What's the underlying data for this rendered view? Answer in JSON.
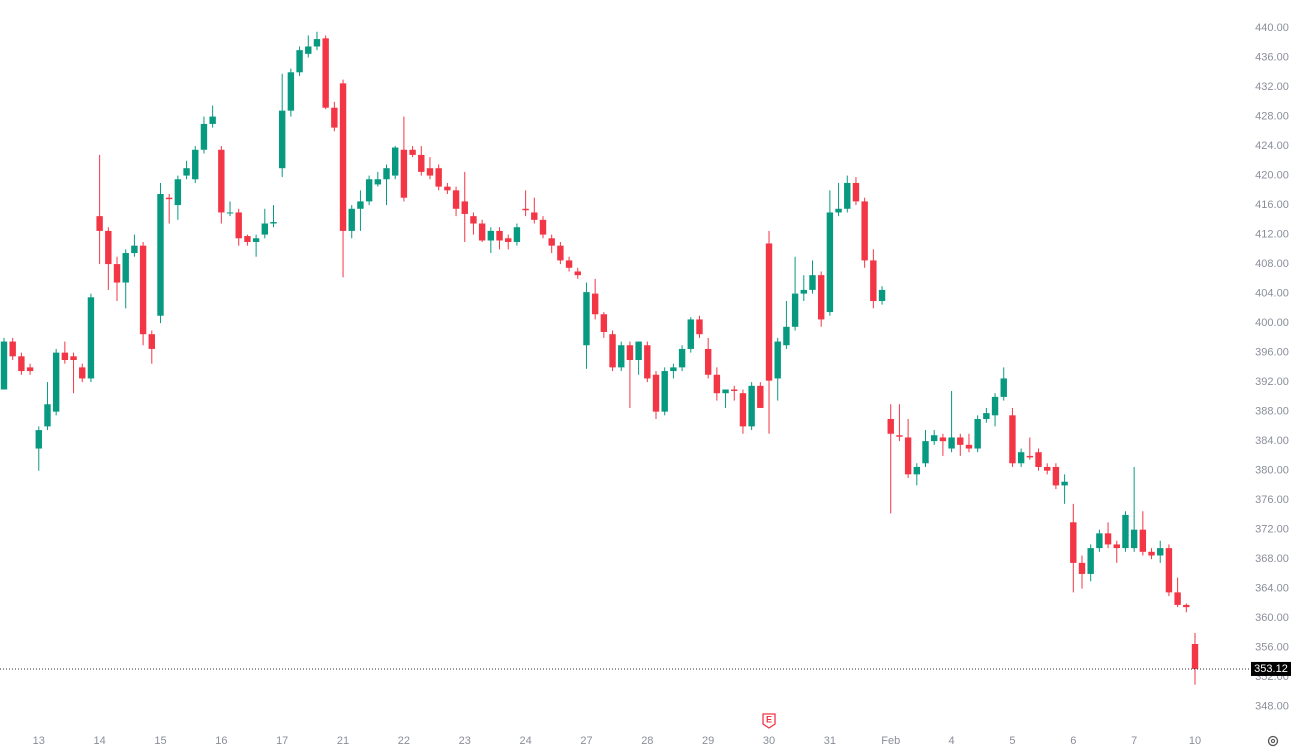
{
  "chart_data": {
    "type": "candlestick",
    "up_color": "#089981",
    "down_color": "#f23645",
    "ylim": [
      346.2,
      443.8
    ],
    "yticks": [
      {
        "value": 348,
        "label": "348.00"
      },
      {
        "value": 352,
        "label": "352.00"
      },
      {
        "value": 356,
        "label": "356.00"
      },
      {
        "value": 360,
        "label": "360.00"
      },
      {
        "value": 364,
        "label": "364.00"
      },
      {
        "value": 368,
        "label": "368.00"
      },
      {
        "value": 372,
        "label": "372.00"
      },
      {
        "value": 376,
        "label": "376.00"
      },
      {
        "value": 380,
        "label": "380.00"
      },
      {
        "value": 384,
        "label": "384.00"
      },
      {
        "value": 388,
        "label": "388.00"
      },
      {
        "value": 392,
        "label": "392.00"
      },
      {
        "value": 396,
        "label": "396.00"
      },
      {
        "value": 400,
        "label": "400.00"
      },
      {
        "value": 404,
        "label": "404.00"
      },
      {
        "value": 408,
        "label": "408.00"
      },
      {
        "value": 412,
        "label": "412.00"
      },
      {
        "value": 416,
        "label": "416.00"
      },
      {
        "value": 420,
        "label": "420.00"
      },
      {
        "value": 424,
        "label": "424.00"
      },
      {
        "value": 428,
        "label": "428.00"
      },
      {
        "value": 432,
        "label": "432.00"
      },
      {
        "value": 436,
        "label": "436.00"
      },
      {
        "value": 440,
        "label": "440.00"
      }
    ],
    "last_price": 353.12,
    "earnings_marker": "E",
    "earnings_index": 88,
    "categories": [
      null,
      null,
      null,
      null,
      "13",
      null,
      null,
      null,
      null,
      null,
      null,
      "14",
      null,
      null,
      null,
      null,
      null,
      null,
      "15",
      null,
      null,
      null,
      null,
      null,
      null,
      "16",
      null,
      null,
      null,
      null,
      null,
      null,
      "17",
      null,
      null,
      null,
      null,
      null,
      null,
      "21",
      null,
      null,
      null,
      null,
      null,
      null,
      "22",
      null,
      null,
      null,
      null,
      null,
      null,
      "23",
      null,
      null,
      null,
      null,
      null,
      null,
      "24",
      null,
      null,
      null,
      null,
      null,
      null,
      "27",
      null,
      null,
      null,
      null,
      null,
      null,
      "28",
      null,
      null,
      null,
      null,
      null,
      null,
      "29",
      null,
      null,
      null,
      null,
      null,
      null,
      "30",
      null,
      null,
      null,
      null,
      null,
      null,
      "31",
      null,
      null,
      null,
      null,
      null,
      null,
      "Feb",
      null,
      null,
      null,
      null,
      null,
      null,
      "4",
      null,
      null,
      null,
      null,
      null,
      null,
      "5",
      null,
      null,
      null,
      null,
      null,
      null,
      "6",
      null,
      null,
      null,
      null,
      null,
      null,
      "7",
      null,
      null,
      null,
      null,
      null,
      null,
      "10"
    ],
    "ohlc": [
      [
        391,
        398,
        391,
        397.5
      ],
      [
        397.5,
        398,
        395,
        395.5
      ],
      [
        395.5,
        396,
        393,
        393.5
      ],
      [
        394,
        394.5,
        393,
        393.5
      ],
      [
        383,
        386,
        380,
        385.5
      ],
      [
        386,
        392,
        385.5,
        389
      ],
      [
        388,
        396.5,
        387.5,
        396
      ],
      [
        396,
        397.5,
        394.5,
        395
      ],
      [
        395.5,
        396,
        390.5,
        395
      ],
      [
        394,
        394.5,
        392,
        392.5
      ],
      [
        392.5,
        404,
        392,
        403.5
      ],
      [
        414.5,
        422.8,
        408,
        412.5
      ],
      [
        412.5,
        413,
        404.5,
        408
      ],
      [
        408,
        409,
        403,
        405.5
      ],
      [
        405.5,
        410,
        402,
        409.5
      ],
      [
        409.5,
        412,
        409,
        410.5
      ],
      [
        410.5,
        411,
        397,
        398.5
      ],
      [
        398.5,
        399,
        394.5,
        396.5
      ],
      [
        401,
        419,
        400,
        417.5
      ],
      [
        417,
        417.5,
        413.5,
        416.8
      ],
      [
        416,
        420,
        414,
        419.5
      ],
      [
        420,
        422,
        419.5,
        421
      ],
      [
        419.5,
        424,
        419,
        423.5
      ],
      [
        423.5,
        428,
        423,
        427
      ],
      [
        427,
        429.5,
        426.5,
        428
      ],
      [
        423.5,
        424,
        413.5,
        415
      ],
      [
        415,
        416.5,
        414.5,
        415
      ],
      [
        415,
        415.5,
        410.5,
        411.5
      ],
      [
        411.8,
        412,
        410.5,
        411
      ],
      [
        411,
        412,
        409,
        411.5
      ],
      [
        412,
        415.5,
        411.5,
        413.5
      ],
      [
        413.5,
        416,
        413,
        413.7
      ],
      [
        421,
        433.8,
        419.8,
        428.8
      ],
      [
        428.8,
        434.5,
        428,
        434
      ],
      [
        434,
        437.5,
        433.5,
        437
      ],
      [
        436.5,
        439,
        436,
        437.5
      ],
      [
        437.5,
        439.5,
        437,
        438.5
      ],
      [
        438.6,
        439,
        429,
        429.2
      ],
      [
        429.2,
        430,
        426,
        426.5
      ],
      [
        432.5,
        433,
        406.2,
        412.5
      ],
      [
        412.5,
        416,
        411.5,
        415.5
      ],
      [
        415.5,
        418,
        412.5,
        416.5
      ],
      [
        416.5,
        420,
        416,
        419.5
      ],
      [
        418.8,
        420.5,
        418.5,
        419.5
      ],
      [
        419.5,
        421.5,
        416,
        421
      ],
      [
        420,
        424,
        419.5,
        423.8
      ],
      [
        423.5,
        428,
        416.5,
        417
      ],
      [
        423.5,
        424,
        422.5,
        422.8
      ],
      [
        422.8,
        424,
        420,
        420.5
      ],
      [
        421,
        422.5,
        419.5,
        420
      ],
      [
        421,
        421.5,
        418,
        418.5
      ],
      [
        418.5,
        419,
        417.5,
        418
      ],
      [
        418,
        418.5,
        414.5,
        415.5
      ],
      [
        416.5,
        420.5,
        411,
        414.8
      ],
      [
        414.5,
        415,
        412,
        413.5
      ],
      [
        413.5,
        414,
        411,
        411.2
      ],
      [
        411.2,
        413,
        409.5,
        412.5
      ],
      [
        412.5,
        413,
        410,
        411.2
      ],
      [
        411.5,
        412,
        410,
        411
      ],
      [
        411,
        413.5,
        410.5,
        413
      ],
      [
        415.5,
        418,
        414.5,
        415.3
      ],
      [
        415,
        417,
        413.5,
        414
      ],
      [
        414,
        414.5,
        411.5,
        412
      ],
      [
        411.5,
        412,
        409.5,
        410.5
      ],
      [
        410.5,
        411,
        408,
        408.5
      ],
      [
        408.5,
        409,
        407,
        407.5
      ],
      [
        407,
        407.5,
        406,
        406.5
      ],
      [
        397,
        405.5,
        393.8,
        404.2
      ],
      [
        404,
        406,
        400.5,
        401.2
      ],
      [
        401.2,
        401.5,
        398,
        398.8
      ],
      [
        398.5,
        399,
        393.5,
        394
      ],
      [
        394,
        397.5,
        393.5,
        397
      ],
      [
        397,
        397.5,
        388.5,
        395
      ],
      [
        395,
        397.5,
        393,
        397.5
      ],
      [
        397,
        397.5,
        392,
        392.5
      ],
      [
        393,
        393.5,
        387,
        388
      ],
      [
        388,
        394,
        387.5,
        393.5
      ],
      [
        393.5,
        394.5,
        392.5,
        394
      ],
      [
        394,
        397,
        393.5,
        396.5
      ],
      [
        396.5,
        400.8,
        396,
        400.5
      ],
      [
        400.5,
        401,
        398,
        398.5
      ],
      [
        396.5,
        398,
        392.5,
        393
      ],
      [
        393,
        394,
        389.5,
        390.5
      ],
      [
        390.5,
        391,
        388.5,
        391
      ],
      [
        391,
        391.5,
        389.5,
        390.8
      ],
      [
        390.5,
        391,
        385,
        386
      ],
      [
        386,
        392,
        385.5,
        391.5
      ],
      [
        391.5,
        392,
        388.5,
        388.5
      ],
      [
        410.8,
        412.5,
        385,
        392.2
      ],
      [
        392.5,
        398,
        389.5,
        397.5
      ],
      [
        397,
        403,
        396.5,
        399.5
      ],
      [
        399.5,
        409,
        399,
        404
      ],
      [
        404,
        406.5,
        403,
        404.5
      ],
      [
        404.5,
        408.5,
        404,
        406.5
      ],
      [
        406.5,
        407,
        399.5,
        400.5
      ],
      [
        401.5,
        418,
        401,
        415
      ],
      [
        415,
        419,
        414.5,
        415.5
      ],
      [
        415.5,
        420,
        415,
        419
      ],
      [
        419,
        419.8,
        416,
        416.5
      ],
      [
        416.5,
        417,
        407.5,
        408.5
      ],
      [
        408.5,
        410,
        402,
        403
      ],
      [
        403,
        405,
        402.5,
        404.5
      ],
      [
        387,
        389,
        374.2,
        385
      ],
      [
        384.8,
        389,
        384,
        384.6
      ],
      [
        384.5,
        387,
        379,
        379.5
      ],
      [
        379.5,
        381,
        378,
        380.5
      ],
      [
        381,
        385.5,
        380.5,
        384
      ],
      [
        384,
        385.5,
        383.5,
        384.8
      ],
      [
        384.5,
        385,
        382,
        384
      ],
      [
        383,
        390.8,
        382.5,
        384.5
      ],
      [
        384.5,
        385,
        382,
        383.5
      ],
      [
        383.5,
        385,
        382.5,
        383
      ],
      [
        383,
        387.5,
        382.5,
        387
      ],
      [
        387,
        388.5,
        386.5,
        387.8
      ],
      [
        387.5,
        390.5,
        386,
        390
      ],
      [
        390,
        394,
        389.5,
        392.5
      ],
      [
        387.5,
        388.5,
        380.5,
        381
      ],
      [
        381,
        383,
        380.5,
        382.5
      ],
      [
        382,
        384.5,
        381.5,
        381.8
      ],
      [
        382.5,
        383,
        380,
        380.5
      ],
      [
        380.5,
        381,
        379.5,
        380
      ],
      [
        380.5,
        381,
        377.5,
        378
      ],
      [
        378,
        379.5,
        375.5,
        378.5
      ],
      [
        373,
        375.5,
        363.5,
        367.5
      ],
      [
        367.5,
        368.5,
        364,
        366
      ],
      [
        366,
        370,
        365,
        369.5
      ],
      [
        369.5,
        372,
        369,
        371.5
      ],
      [
        371.5,
        373,
        369.5,
        370
      ],
      [
        370,
        370.5,
        367.5,
        369.5
      ],
      [
        369.5,
        374.5,
        369,
        374
      ],
      [
        369.5,
        380.5,
        369,
        372
      ],
      [
        372,
        374.5,
        368.5,
        369
      ],
      [
        369,
        369.5,
        368,
        368.5
      ],
      [
        368.5,
        370.5,
        367.5,
        369.5
      ],
      [
        369.5,
        370,
        363,
        363.5
      ],
      [
        363.5,
        365.5,
        361.5,
        361.8
      ],
      [
        361.8,
        362,
        360.8,
        361.5
      ],
      [
        356.5,
        358,
        351,
        353.12
      ]
    ]
  }
}
